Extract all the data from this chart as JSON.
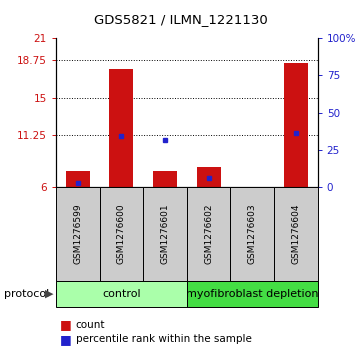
{
  "title": "GDS5821 / ILMN_1221130",
  "samples": [
    "GSM1276599",
    "GSM1276600",
    "GSM1276601",
    "GSM1276602",
    "GSM1276603",
    "GSM1276604"
  ],
  "bar_bottoms": [
    6,
    6,
    6,
    6,
    6,
    6
  ],
  "bar_tops": [
    7.6,
    17.9,
    7.6,
    8.0,
    6.0,
    18.5
  ],
  "percentile_values": [
    6.35,
    11.1,
    10.7,
    6.9,
    null,
    11.4
  ],
  "ylim_left": [
    6,
    21
  ],
  "ylim_right": [
    0,
    100
  ],
  "yticks_left": [
    6,
    11.25,
    15,
    18.75,
    21
  ],
  "yticks_right": [
    0,
    25,
    50,
    75,
    100
  ],
  "ytick_labels_left": [
    "6",
    "11.25",
    "15",
    "18.75",
    "21"
  ],
  "ytick_labels_right": [
    "0",
    "25",
    "50",
    "75",
    "100%"
  ],
  "bar_color": "#cc1111",
  "percentile_color": "#2222cc",
  "groups": [
    {
      "label": "control",
      "n_samples": 3,
      "color": "#aaffaa"
    },
    {
      "label": "myofibroblast depletion",
      "n_samples": 3,
      "color": "#44dd44"
    }
  ],
  "protocol_label": "protocol",
  "legend_count_label": "count",
  "legend_percentile_label": "percentile rank within the sample",
  "dotted_lines": [
    11.25,
    15,
    18.75
  ],
  "bar_width": 0.55,
  "background_color": "#ffffff",
  "left_tick_color": "#cc1111",
  "right_tick_color": "#2222cc",
  "title_fontsize": 9.5,
  "tick_fontsize": 7.5,
  "sample_fontsize": 6.5,
  "protocol_fontsize": 8,
  "group_fontsize": 8,
  "legend_fontsize": 7.5
}
